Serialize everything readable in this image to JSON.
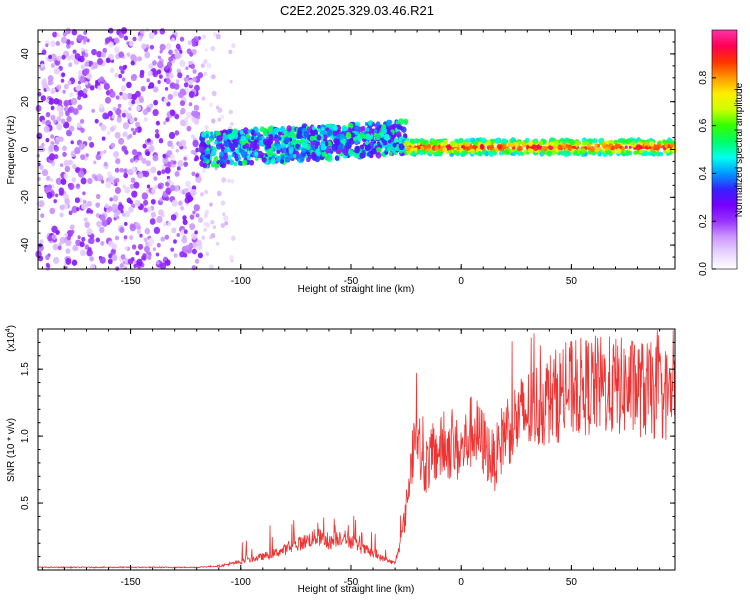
{
  "title": "C2E2.2025.329.03.46.R21",
  "chart_data": [
    {
      "type": "heatmap",
      "name": "spectrogram",
      "xlabel": "Height of straight line (km)",
      "ylabel": "Frequency (Hz)",
      "xlim": [
        -192,
        97
      ],
      "ylim": [
        -50,
        50
      ],
      "xticks": [
        -150,
        -100,
        -50,
        0,
        50
      ],
      "yticks": [
        -40,
        -20,
        0,
        20,
        40
      ],
      "colorbar": {
        "label": "Normalized spectral amplitude",
        "range": [
          0,
          1
        ],
        "ticks": [
          0.0,
          0.2,
          0.4,
          0.6,
          0.8
        ],
        "tick_labels": [
          "0.0",
          "0.2",
          "0.4",
          "0.6",
          "0.8"
        ],
        "colors": [
          "#ffffff",
          "#e8d5ff",
          "#cc99ff",
          "#9933ff",
          "#7700ff",
          "#3322ff",
          "#0099ff",
          "#00ffee",
          "#00ff66",
          "#33ff00",
          "#ccff00",
          "#ffee00",
          "#ff9900",
          "#ff3300",
          "#ff0055",
          "#ff33aa"
        ]
      },
      "description_segments": [
        {
          "x_range": [
            -192,
            -118
          ],
          "pattern": "scattered noise, full band",
          "amplitude": 0.1
        },
        {
          "x_range": [
            -118,
            -103
          ],
          "pattern": "sparse noise",
          "amplitude": 0.05
        },
        {
          "x_range": [
            -118,
            -25
          ],
          "pattern": "signal band near 0 Hz drifting up to +5 Hz",
          "amplitude": 0.35
        },
        {
          "x_range": [
            -25,
            97
          ],
          "pattern": "strong narrow band at ~1 Hz",
          "amplitude": 0.9
        }
      ]
    },
    {
      "type": "line",
      "name": "snr",
      "xlabel": "Height of straight line (km)",
      "ylabel": "SNR (10 * v/v)",
      "y_multiplier": "(x10",
      "y_multiplier_exp": "4",
      "y_multiplier_close": ")",
      "xlim": [
        -192,
        97
      ],
      "ylim": [
        0,
        1.8
      ],
      "xticks": [
        -150,
        -100,
        -50,
        0,
        50
      ],
      "yticks": [
        0.5,
        1.0,
        1.5
      ],
      "ytick_labels": [
        "0.5",
        "1.0",
        "1.5"
      ],
      "color": "#ee3333",
      "series": [
        {
          "name": "SNR",
          "x": [
            -192,
            -150,
            -120,
            -110,
            -100,
            -90,
            -80,
            -70,
            -65,
            -60,
            -55,
            -50,
            -45,
            -40,
            -35,
            -30,
            -27,
            -25,
            -22,
            -20,
            -18,
            -15,
            -10,
            -5,
            0,
            5,
            10,
            15,
            20,
            30,
            40,
            50,
            60,
            70,
            80,
            90,
            97
          ],
          "y": [
            0.02,
            0.02,
            0.02,
            0.03,
            0.06,
            0.1,
            0.15,
            0.22,
            0.25,
            0.2,
            0.25,
            0.22,
            0.16,
            0.12,
            0.08,
            0.05,
            0.25,
            0.45,
            0.9,
            1.2,
            0.75,
            0.8,
            0.9,
            0.92,
            0.88,
            1.05,
            0.95,
            0.8,
            1.05,
            1.18,
            1.28,
            1.35,
            1.38,
            1.37,
            1.36,
            1.32,
            1.3
          ]
        }
      ]
    }
  ]
}
